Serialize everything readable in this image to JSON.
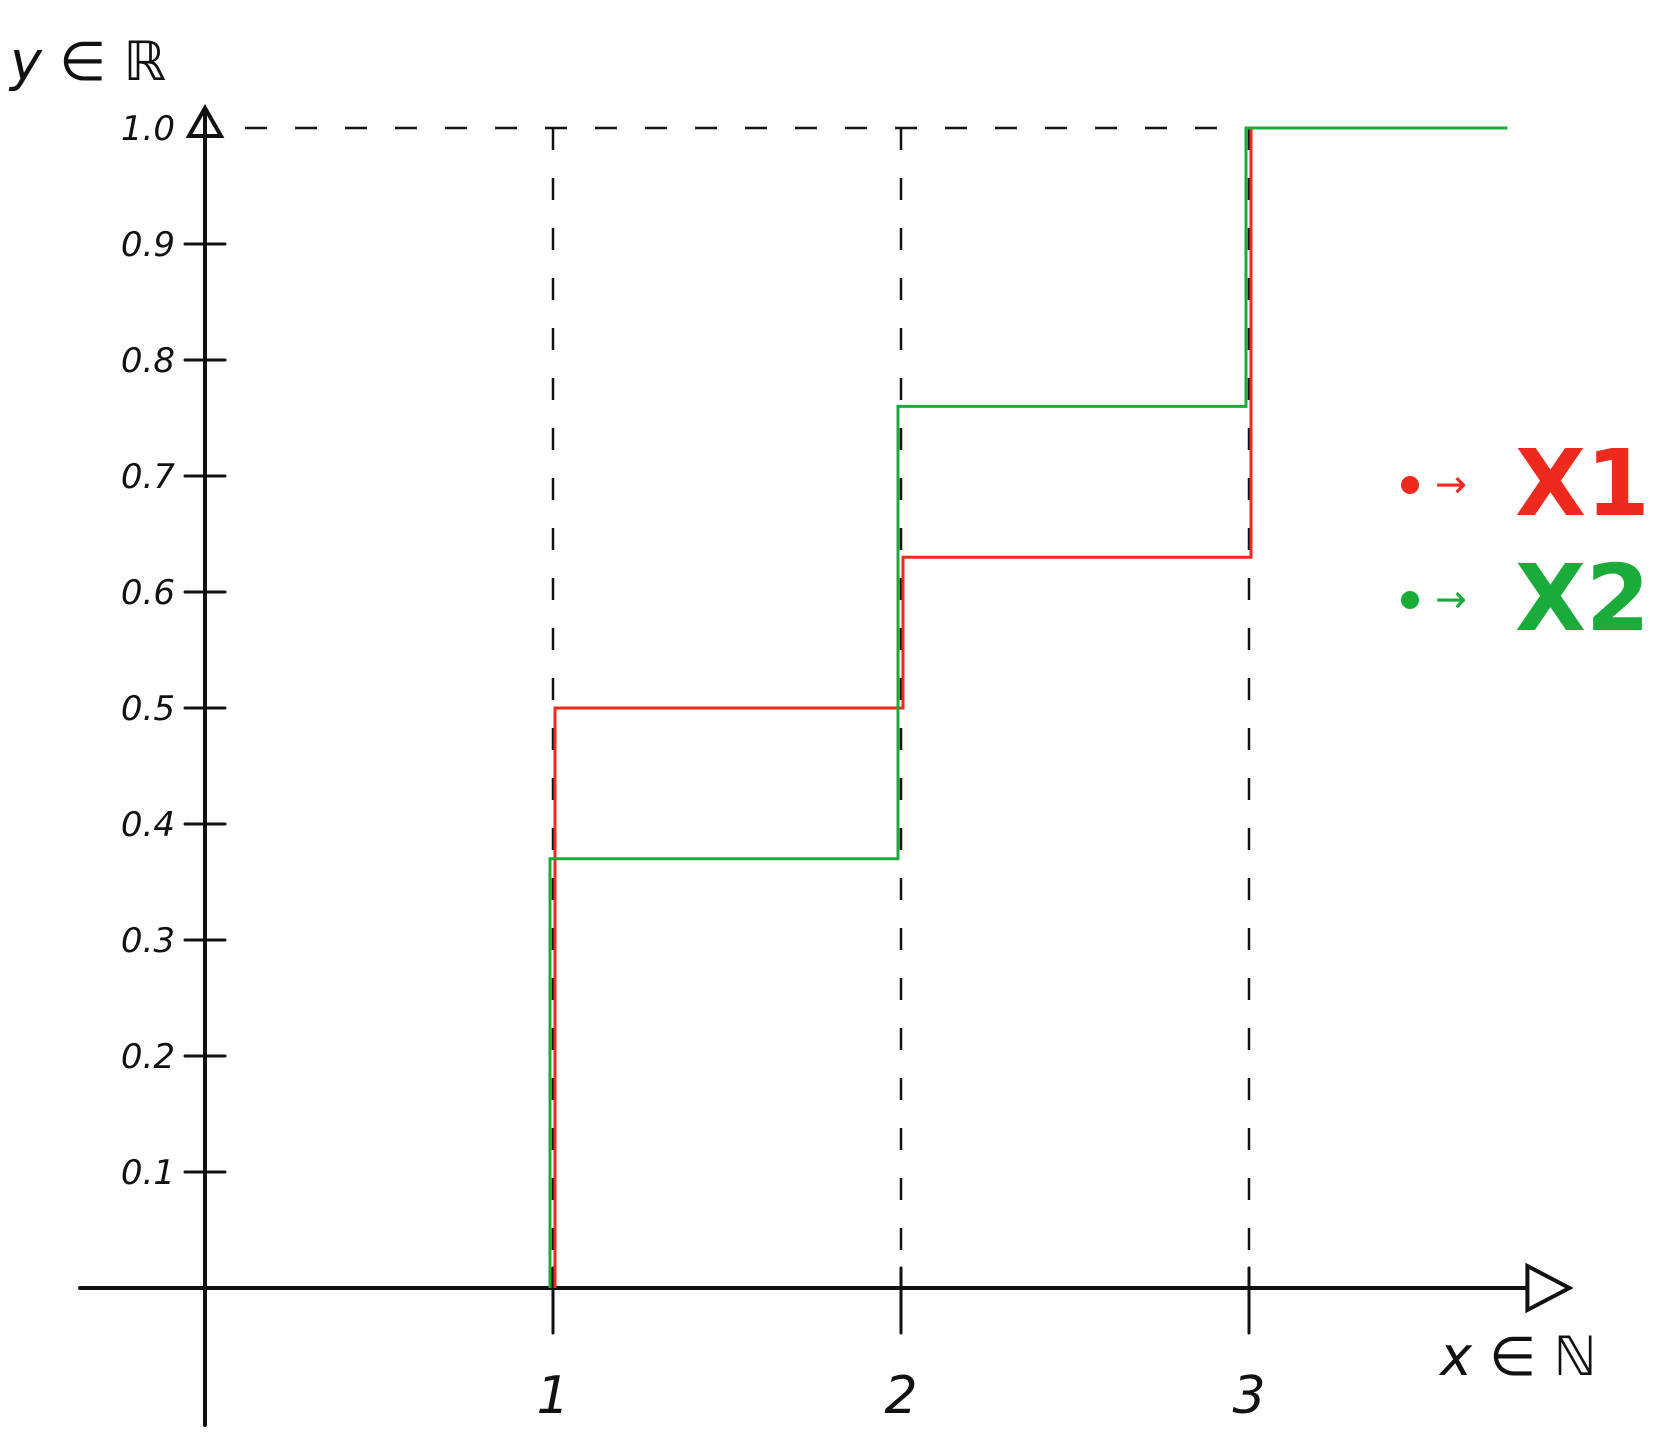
{
  "chart_data": {
    "type": "line",
    "step": true,
    "xlabel": "x ∈ ℕ",
    "ylabel": "y ∈ ℝ",
    "x_ticks": [
      "1",
      "2",
      "3"
    ],
    "y_ticks": [
      "0.1",
      "0.2",
      "0.3",
      "0.4",
      "0.5",
      "0.6",
      "0.7",
      "0.8",
      "0.9",
      "1.0"
    ],
    "xlim": [
      0,
      3.8
    ],
    "ylim": [
      0,
      1.0
    ],
    "grid": false,
    "legend_position": "right",
    "series": [
      {
        "name": "X1",
        "color": "#ee2a1f",
        "x": [
          1,
          2,
          3
        ],
        "y": [
          0.5,
          0.63,
          1.0
        ]
      },
      {
        "name": "X2",
        "color": "#1bab3b",
        "x": [
          1,
          2,
          3
        ],
        "y": [
          0.37,
          0.76,
          1.0
        ]
      }
    ],
    "legend": [
      {
        "arrow": "→",
        "label": "X1",
        "color": "#ee2a1f"
      },
      {
        "arrow": "→",
        "label": "X2",
        "color": "#1bab3b"
      }
    ]
  }
}
